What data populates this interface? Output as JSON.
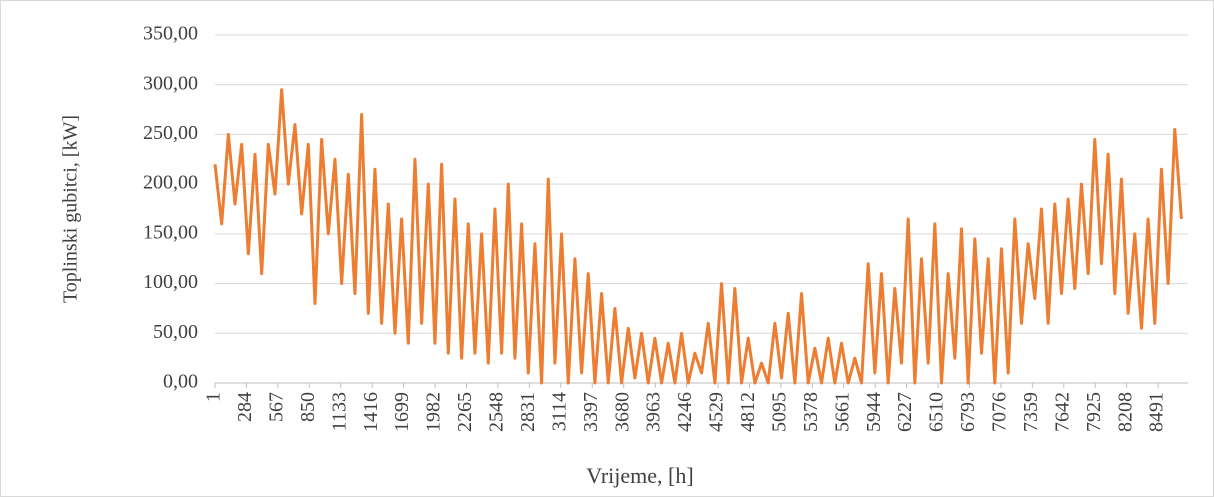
{
  "chart_data": {
    "type": "line",
    "y_label": "Toplinski gubitci, [kW]",
    "x_label": "Vrijeme, [h]",
    "color": "#ed7d31",
    "grid": true,
    "xlim": [
      1,
      8760
    ],
    "xticks": [
      1,
      284,
      567,
      850,
      1133,
      1416,
      1699,
      1982,
      2265,
      2548,
      2831,
      3114,
      3397,
      3680,
      3963,
      4246,
      4529,
      4812,
      5095,
      5378,
      5661,
      5944,
      6227,
      6510,
      6793,
      7076,
      7359,
      7642,
      7925,
      8208,
      8491
    ],
    "ylim": [
      0,
      350
    ],
    "yticks": [
      {
        "value": 0,
        "label": "0,00"
      },
      {
        "value": 50,
        "label": "50,00"
      },
      {
        "value": 100,
        "label": "100,00"
      },
      {
        "value": 150,
        "label": "150,00"
      },
      {
        "value": 200,
        "label": "200,00"
      },
      {
        "value": 250,
        "label": "250,00"
      },
      {
        "value": 300,
        "label": "300,00"
      },
      {
        "value": 350,
        "label": "350,00"
      }
    ],
    "x": [
      1,
      61,
      121,
      181,
      241,
      301,
      361,
      421,
      481,
      541,
      601,
      661,
      721,
      781,
      841,
      901,
      961,
      1021,
      1081,
      1141,
      1201,
      1261,
      1321,
      1381,
      1441,
      1501,
      1561,
      1621,
      1681,
      1741,
      1801,
      1861,
      1921,
      1981,
      2041,
      2101,
      2161,
      2221,
      2281,
      2341,
      2401,
      2461,
      2521,
      2581,
      2641,
      2701,
      2761,
      2821,
      2881,
      2941,
      3001,
      3061,
      3121,
      3181,
      3241,
      3301,
      3361,
      3421,
      3481,
      3541,
      3601,
      3661,
      3721,
      3781,
      3841,
      3901,
      3961,
      4021,
      4081,
      4141,
      4201,
      4261,
      4321,
      4381,
      4441,
      4501,
      4561,
      4621,
      4681,
      4741,
      4801,
      4861,
      4921,
      4981,
      5041,
      5101,
      5161,
      5221,
      5281,
      5341,
      5401,
      5461,
      5521,
      5581,
      5641,
      5701,
      5761,
      5821,
      5881,
      5941,
      6001,
      6061,
      6121,
      6181,
      6241,
      6301,
      6361,
      6421,
      6481,
      6541,
      6601,
      6661,
      6721,
      6781,
      6841,
      6901,
      6961,
      7021,
      7081,
      7141,
      7201,
      7261,
      7321,
      7381,
      7441,
      7501,
      7561,
      7621,
      7681,
      7741,
      7801,
      7861,
      7921,
      7981,
      8041,
      8101,
      8161,
      8221,
      8281,
      8341,
      8401,
      8461,
      8521,
      8581,
      8641,
      8701
    ],
    "values": [
      220,
      160,
      250,
      180,
      240,
      130,
      230,
      110,
      240,
      190,
      295,
      200,
      260,
      170,
      240,
      80,
      245,
      150,
      225,
      100,
      210,
      90,
      270,
      70,
      215,
      60,
      180,
      50,
      165,
      40,
      225,
      60,
      200,
      40,
      220,
      30,
      185,
      25,
      160,
      30,
      150,
      20,
      175,
      30,
      200,
      25,
      160,
      10,
      140,
      0,
      205,
      20,
      150,
      0,
      125,
      10,
      110,
      0,
      90,
      0,
      75,
      0,
      55,
      5,
      50,
      0,
      45,
      0,
      40,
      0,
      50,
      0,
      30,
      10,
      60,
      0,
      100,
      0,
      95,
      0,
      45,
      0,
      20,
      0,
      60,
      5,
      70,
      0,
      90,
      0,
      35,
      0,
      45,
      0,
      40,
      0,
      25,
      0,
      120,
      10,
      110,
      0,
      95,
      20,
      165,
      0,
      125,
      20,
      160,
      0,
      110,
      25,
      155,
      0,
      145,
      30,
      125,
      0,
      135,
      10,
      165,
      60,
      140,
      85,
      175,
      60,
      180,
      90,
      185,
      95,
      200,
      110,
      245,
      120,
      230,
      90,
      205,
      70,
      150,
      55,
      165,
      60,
      215,
      100,
      255,
      165
    ]
  }
}
